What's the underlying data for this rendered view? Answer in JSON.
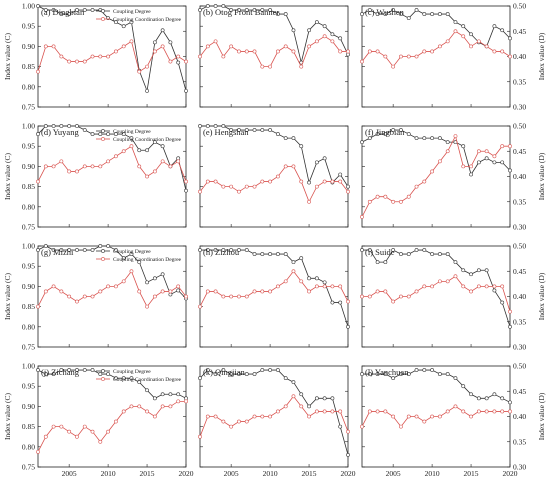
{
  "colors": {
    "coupling": "#333333",
    "coordination": "#d9534f"
  },
  "chart_data": {
    "type": "line",
    "x_ticks": [
      2005,
      2010,
      2015,
      2020
    ],
    "xlim": [
      2001,
      2020
    ],
    "left_axis": {
      "label": "Index value (C)",
      "ylim": [
        0.75,
        1.0
      ],
      "ticks": [
        "0.75",
        "0.80",
        "0.85",
        "0.90",
        "0.95",
        "1.00"
      ]
    },
    "right_axis": {
      "label": "Index value (D)",
      "ylim": [
        0.3,
        0.5
      ],
      "ticks": [
        "0.30",
        "0.35",
        "0.40",
        "0.45",
        "0.50"
      ]
    },
    "x_tick_labels": [
      "2005",
      "2010",
      "2015",
      "2020"
    ],
    "legend": {
      "coupling": "Coupling Degree",
      "coordination": "Coupling Coordination Degree"
    },
    "panels": [
      {
        "title": "(a) Dingbian",
        "legend": true,
        "years": [
          2001,
          2002,
          2003,
          2004,
          2005,
          2006,
          2007,
          2008,
          2009,
          2010,
          2011,
          2012,
          2013,
          2014,
          2015,
          2016,
          2017,
          2018,
          2019,
          2020
        ],
        "coupling": [
          1.0,
          0.99,
          0.99,
          0.98,
          0.98,
          0.99,
          0.99,
          0.99,
          0.99,
          0.97,
          0.96,
          0.95,
          0.96,
          0.84,
          0.79,
          0.91,
          0.94,
          0.91,
          0.86,
          0.79
        ],
        "coordination": [
          0.37,
          0.42,
          0.42,
          0.4,
          0.39,
          0.39,
          0.39,
          0.4,
          0.4,
          0.4,
          0.41,
          0.42,
          0.43,
          0.37,
          0.38,
          0.41,
          0.42,
          0.39,
          0.4,
          0.39
        ]
      },
      {
        "title": "(b) Otog Front Banner",
        "legend": false,
        "years": [
          2001,
          2002,
          2003,
          2004,
          2005,
          2006,
          2007,
          2008,
          2009,
          2010,
          2011,
          2012,
          2013,
          2014,
          2015,
          2016,
          2017,
          2018,
          2019,
          2020
        ],
        "coupling": [
          0.99,
          1.0,
          1.0,
          1.0,
          0.99,
          0.99,
          0.99,
          0.99,
          0.99,
          0.99,
          0.98,
          0.98,
          0.94,
          0.86,
          0.94,
          0.96,
          0.95,
          0.93,
          0.92,
          0.88
        ],
        "coordination": [
          0.4,
          0.42,
          0.43,
          0.4,
          0.42,
          0.41,
          0.41,
          0.41,
          0.38,
          0.38,
          0.41,
          0.42,
          0.41,
          0.38,
          0.42,
          0.43,
          0.44,
          0.43,
          0.41,
          0.41
        ]
      },
      {
        "title": "(c) Wushen",
        "legend": false,
        "years": [
          2001,
          2002,
          2003,
          2004,
          2005,
          2006,
          2007,
          2008,
          2009,
          2010,
          2011,
          2012,
          2013,
          2014,
          2015,
          2016,
          2017,
          2018,
          2019,
          2020
        ],
        "coupling": [
          0.98,
          0.99,
          0.98,
          0.98,
          0.99,
          0.98,
          0.97,
          0.99,
          0.98,
          0.98,
          0.98,
          0.98,
          0.96,
          0.95,
          0.93,
          0.91,
          0.9,
          0.95,
          0.94,
          0.92
        ],
        "coordination": [
          0.39,
          0.41,
          0.41,
          0.4,
          0.38,
          0.4,
          0.4,
          0.4,
          0.41,
          0.41,
          0.42,
          0.43,
          0.45,
          0.44,
          0.42,
          0.43,
          0.42,
          0.41,
          0.41,
          0.4
        ]
      },
      {
        "title": "(d) Yuyang",
        "legend": true,
        "years": [
          2001,
          2002,
          2003,
          2004,
          2005,
          2006,
          2007,
          2008,
          2009,
          2010,
          2011,
          2012,
          2013,
          2014,
          2015,
          2016,
          2017,
          2018,
          2019,
          2020
        ],
        "coupling": [
          0.98,
          1.0,
          1.0,
          1.0,
          1.0,
          1.0,
          0.99,
          0.98,
          0.98,
          0.98,
          0.98,
          0.98,
          0.97,
          0.94,
          0.94,
          0.96,
          0.95,
          0.9,
          0.92,
          0.84
        ],
        "coordination": [
          0.39,
          0.42,
          0.42,
          0.43,
          0.41,
          0.41,
          0.42,
          0.42,
          0.42,
          0.43,
          0.44,
          0.45,
          0.46,
          0.42,
          0.4,
          0.41,
          0.43,
          0.42,
          0.43,
          0.39
        ]
      },
      {
        "title": "(e) Hengshan",
        "legend": false,
        "years": [
          2001,
          2002,
          2003,
          2004,
          2005,
          2006,
          2007,
          2008,
          2009,
          2010,
          2011,
          2012,
          2013,
          2014,
          2015,
          2016,
          2017,
          2018,
          2019,
          2020
        ],
        "coupling": [
          1.0,
          1.0,
          1.0,
          1.0,
          0.99,
          0.99,
          0.99,
          0.99,
          0.99,
          0.99,
          0.98,
          0.97,
          0.97,
          0.95,
          0.86,
          0.91,
          0.92,
          0.86,
          0.88,
          0.85
        ],
        "coordination": [
          0.37,
          0.39,
          0.39,
          0.38,
          0.38,
          0.37,
          0.38,
          0.38,
          0.39,
          0.39,
          0.4,
          0.42,
          0.42,
          0.39,
          0.35,
          0.38,
          0.39,
          0.39,
          0.39,
          0.37
        ]
      },
      {
        "title": "(f) Jingbian",
        "legend": false,
        "years": [
          2001,
          2002,
          2003,
          2004,
          2005,
          2006,
          2007,
          2008,
          2009,
          2010,
          2011,
          2012,
          2013,
          2014,
          2015,
          2016,
          2017,
          2018,
          2019,
          2020
        ],
        "coupling": [
          0.96,
          0.97,
          0.98,
          0.98,
          0.99,
          0.99,
          0.98,
          0.97,
          0.97,
          0.97,
          0.97,
          0.96,
          0.96,
          0.95,
          0.88,
          0.91,
          0.92,
          0.91,
          0.91,
          0.89
        ],
        "coordination": [
          0.32,
          0.35,
          0.36,
          0.36,
          0.35,
          0.35,
          0.36,
          0.38,
          0.39,
          0.41,
          0.43,
          0.45,
          0.48,
          0.42,
          0.42,
          0.45,
          0.45,
          0.44,
          0.46,
          0.46
        ]
      },
      {
        "title": "(g) Mizhi",
        "legend": true,
        "years": [
          2001,
          2002,
          2003,
          2004,
          2005,
          2006,
          2007,
          2008,
          2009,
          2010,
          2011,
          2012,
          2013,
          2014,
          2015,
          2016,
          2017,
          2018,
          2019,
          2020
        ],
        "coupling": [
          0.99,
          1.0,
          0.99,
          0.99,
          0.99,
          0.99,
          0.99,
          0.99,
          1.0,
          1.0,
          0.99,
          0.97,
          0.98,
          0.96,
          0.91,
          0.92,
          0.93,
          0.88,
          0.89,
          0.87
        ],
        "coordination": [
          0.38,
          0.41,
          0.42,
          0.41,
          0.4,
          0.39,
          0.4,
          0.4,
          0.41,
          0.42,
          0.42,
          0.43,
          0.45,
          0.41,
          0.38,
          0.4,
          0.41,
          0.41,
          0.42,
          0.4
        ]
      },
      {
        "title": "(h) Zizhou",
        "legend": false,
        "years": [
          2001,
          2002,
          2003,
          2004,
          2005,
          2006,
          2007,
          2008,
          2009,
          2010,
          2011,
          2012,
          2013,
          2014,
          2015,
          2016,
          2017,
          2018,
          2019,
          2020
        ],
        "coupling": [
          0.99,
          0.99,
          0.99,
          0.99,
          0.99,
          0.99,
          0.99,
          0.98,
          0.98,
          0.98,
          0.98,
          0.98,
          0.96,
          0.97,
          0.92,
          0.92,
          0.91,
          0.86,
          0.86,
          0.8
        ],
        "coordination": [
          0.38,
          0.41,
          0.41,
          0.4,
          0.4,
          0.4,
          0.4,
          0.41,
          0.41,
          0.41,
          0.42,
          0.43,
          0.45,
          0.43,
          0.41,
          0.42,
          0.42,
          0.42,
          0.42,
          0.39
        ]
      },
      {
        "title": "(i) Suide",
        "legend": false,
        "years": [
          2001,
          2002,
          2003,
          2004,
          2005,
          2006,
          2007,
          2008,
          2009,
          2010,
          2011,
          2012,
          2013,
          2014,
          2015,
          2016,
          2017,
          2018,
          2019,
          2020
        ],
        "coupling": [
          0.99,
          0.99,
          0.96,
          0.96,
          0.99,
          0.98,
          0.98,
          0.99,
          0.99,
          0.98,
          0.98,
          0.98,
          0.96,
          0.94,
          0.93,
          0.94,
          0.94,
          0.89,
          0.86,
          0.8
        ],
        "coordination": [
          0.4,
          0.4,
          0.41,
          0.41,
          0.39,
          0.4,
          0.4,
          0.41,
          0.42,
          0.42,
          0.43,
          0.43,
          0.44,
          0.42,
          0.41,
          0.42,
          0.42,
          0.42,
          0.42,
          0.37
        ]
      },
      {
        "title": "(j) Zichang",
        "legend": true,
        "years": [
          2001,
          2002,
          2003,
          2004,
          2005,
          2006,
          2007,
          2008,
          2009,
          2010,
          2011,
          2012,
          2013,
          2014,
          2015,
          2016,
          2017,
          2018,
          2019,
          2020
        ],
        "coupling": [
          0.99,
          0.98,
          0.98,
          0.99,
          0.99,
          0.99,
          0.99,
          0.99,
          0.98,
          0.98,
          0.97,
          0.97,
          0.97,
          0.96,
          0.94,
          0.92,
          0.93,
          0.93,
          0.93,
          0.92
        ],
        "coordination": [
          0.33,
          0.36,
          0.38,
          0.38,
          0.37,
          0.36,
          0.38,
          0.37,
          0.35,
          0.37,
          0.39,
          0.41,
          0.42,
          0.42,
          0.41,
          0.4,
          0.42,
          0.42,
          0.43,
          0.43
        ]
      },
      {
        "title": "(k) Qingjian",
        "legend": false,
        "years": [
          2001,
          2002,
          2003,
          2004,
          2005,
          2006,
          2007,
          2008,
          2009,
          2010,
          2011,
          2012,
          2013,
          2014,
          2015,
          2016,
          2017,
          2018,
          2019,
          2020
        ],
        "coupling": [
          0.97,
          0.99,
          0.98,
          0.99,
          0.98,
          0.98,
          0.98,
          0.98,
          0.99,
          0.99,
          0.99,
          0.97,
          0.96,
          0.93,
          0.9,
          0.92,
          0.92,
          0.92,
          0.85,
          0.78
        ],
        "coordination": [
          0.36,
          0.4,
          0.4,
          0.39,
          0.38,
          0.39,
          0.39,
          0.4,
          0.4,
          0.4,
          0.41,
          0.42,
          0.44,
          0.42,
          0.4,
          0.41,
          0.41,
          0.41,
          0.41,
          0.37
        ]
      },
      {
        "title": "(l) Yanchuan",
        "legend": false,
        "years": [
          2001,
          2002,
          2003,
          2004,
          2005,
          2006,
          2007,
          2008,
          2009,
          2010,
          2011,
          2012,
          2013,
          2014,
          2015,
          2016,
          2017,
          2018,
          2019,
          2020
        ],
        "coupling": [
          0.98,
          0.98,
          0.98,
          0.98,
          0.97,
          0.98,
          0.98,
          0.99,
          0.99,
          0.99,
          0.98,
          0.98,
          0.97,
          0.95,
          0.93,
          0.92,
          0.92,
          0.93,
          0.92,
          0.91
        ],
        "coordination": [
          0.38,
          0.41,
          0.41,
          0.41,
          0.4,
          0.38,
          0.4,
          0.4,
          0.39,
          0.4,
          0.4,
          0.41,
          0.42,
          0.41,
          0.4,
          0.41,
          0.41,
          0.41,
          0.41,
          0.41
        ]
      }
    ]
  }
}
